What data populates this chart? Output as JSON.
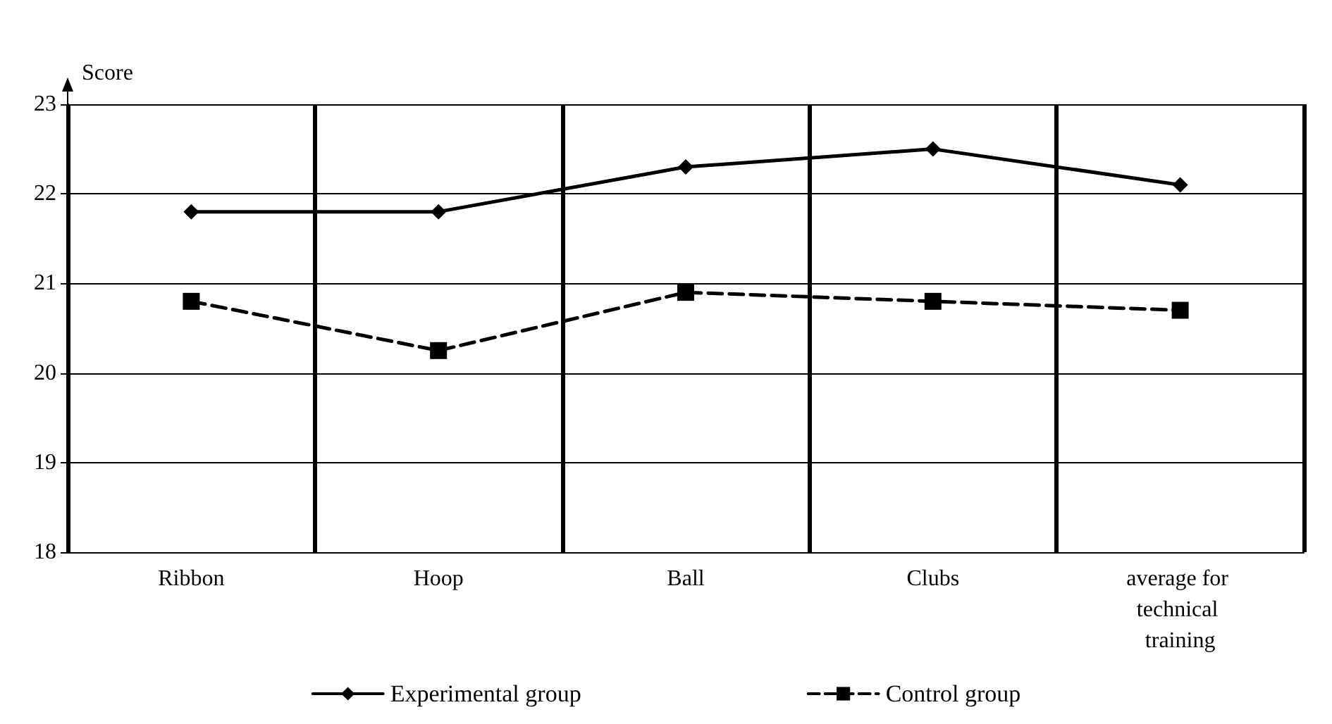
{
  "chart_data": {
    "type": "line",
    "ylabel": "Score",
    "categories": [
      "Ribbon",
      "Hoop",
      "Ball",
      "Clubs",
      "average for technical training"
    ],
    "series": [
      {
        "name": "Experimental group",
        "color": "#000000",
        "marker": "diamond",
        "line_style": "solid",
        "values": [
          21.8,
          21.8,
          22.3,
          22.5,
          22.1
        ]
      },
      {
        "name": "Control group",
        "color": "#000000",
        "marker": "square",
        "line_style": "dashed",
        "values": [
          20.8,
          20.25,
          20.9,
          20.8,
          20.7
        ]
      }
    ],
    "ylim": [
      18,
      23
    ],
    "yticks": [
      18,
      19,
      20,
      21,
      22,
      23
    ],
    "grid": true,
    "legend": "bottom"
  }
}
